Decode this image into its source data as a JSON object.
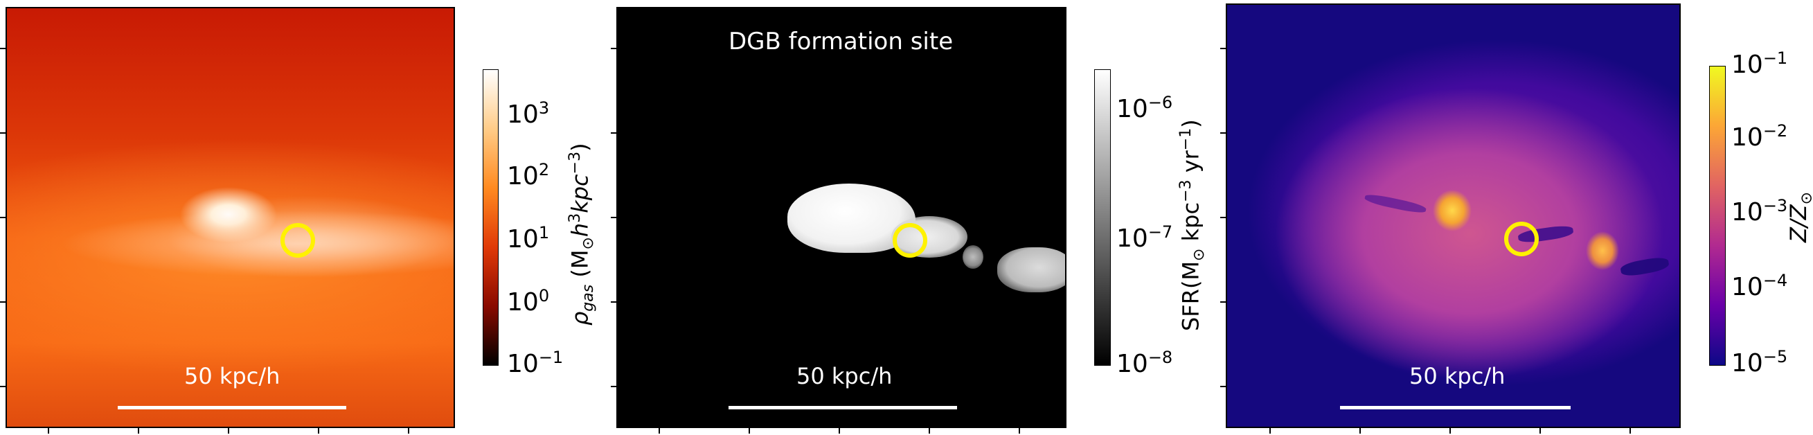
{
  "panels": [
    {
      "scalebar_label": "50 kpc/h",
      "colorbar": {
        "title_parts": [
          "ρ",
          "gas",
          " (M",
          "⊙",
          "h",
          "3",
          "kpc",
          "−3",
          ")"
        ],
        "ticks": [
          {
            "base": "10",
            "exp": "3"
          },
          {
            "base": "10",
            "exp": "2"
          },
          {
            "base": "10",
            "exp": "1"
          },
          {
            "base": "10",
            "exp": "0"
          },
          {
            "base": "10",
            "exp": "−1"
          }
        ],
        "colors": [
          "#ffffff",
          "#ffcc88",
          "#ff8a20",
          "#e03a08",
          "#8a0a00",
          "#000000"
        ]
      }
    },
    {
      "title": "DGB formation site",
      "scalebar_label": "50 kpc/h",
      "colorbar": {
        "title_parts": [
          "SFR(M",
          "⊙",
          " kpc",
          "−3",
          " yr",
          "−1",
          ")"
        ],
        "ticks": [
          {
            "base": "10",
            "exp": "−6"
          },
          {
            "base": "10",
            "exp": "−7"
          },
          {
            "base": "10",
            "exp": "−8"
          }
        ],
        "colors": [
          "#ffffff",
          "#000000"
        ]
      }
    },
    {
      "scalebar_label": "50 kpc/h",
      "colorbar": {
        "title_parts": [
          "Z/Z",
          "⊙"
        ],
        "ticks": [
          {
            "base": "10",
            "exp": "−1"
          },
          {
            "base": "10",
            "exp": "−2"
          },
          {
            "base": "10",
            "exp": "−3"
          },
          {
            "base": "10",
            "exp": "−4"
          },
          {
            "base": "10",
            "exp": "−5"
          }
        ],
        "colors": [
          "#f0f921",
          "#fca636",
          "#e16462",
          "#b12a90",
          "#6a00a8",
          "#0d0887"
        ]
      }
    }
  ],
  "marker_color": "#fff200"
}
